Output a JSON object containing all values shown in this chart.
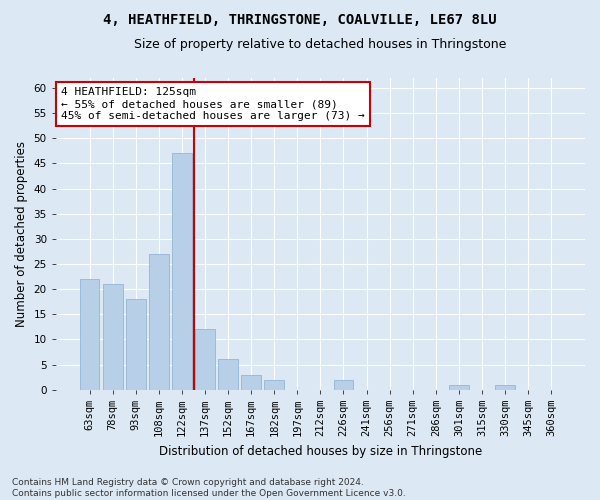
{
  "title_line1": "4, HEATHFIELD, THRINGSTONE, COALVILLE, LE67 8LU",
  "title_line2": "Size of property relative to detached houses in Thringstone",
  "xlabel": "Distribution of detached houses by size in Thringstone",
  "ylabel": "Number of detached properties",
  "categories": [
    "63sqm",
    "78sqm",
    "93sqm",
    "108sqm",
    "122sqm",
    "137sqm",
    "152sqm",
    "167sqm",
    "182sqm",
    "197sqm",
    "212sqm",
    "226sqm",
    "241sqm",
    "256sqm",
    "271sqm",
    "286sqm",
    "301sqm",
    "315sqm",
    "330sqm",
    "345sqm",
    "360sqm"
  ],
  "values": [
    22,
    21,
    18,
    27,
    47,
    12,
    6,
    3,
    2,
    0,
    0,
    2,
    0,
    0,
    0,
    0,
    1,
    0,
    1,
    0,
    0
  ],
  "bar_color": "#b8cfe8",
  "bar_edge_color": "#8aaece",
  "vline_x": 4.5,
  "vline_color": "#cc0000",
  "annotation_text": "4 HEATHFIELD: 125sqm\n← 55% of detached houses are smaller (89)\n45% of semi-detached houses are larger (73) →",
  "annotation_box_color": "#ffffff",
  "annotation_box_edge_color": "#cc0000",
  "ylim": [
    0,
    62
  ],
  "yticks": [
    0,
    5,
    10,
    15,
    20,
    25,
    30,
    35,
    40,
    45,
    50,
    55,
    60
  ],
  "footer": "Contains HM Land Registry data © Crown copyright and database right 2024.\nContains public sector information licensed under the Open Government Licence v3.0.",
  "background_color": "#dce8f4",
  "plot_background_color": "#dce8f4",
  "grid_color": "#ffffff",
  "title_fontsize": 10,
  "subtitle_fontsize": 9,
  "axis_label_fontsize": 8.5,
  "tick_fontsize": 7.5,
  "annotation_fontsize": 8,
  "footer_fontsize": 6.5
}
